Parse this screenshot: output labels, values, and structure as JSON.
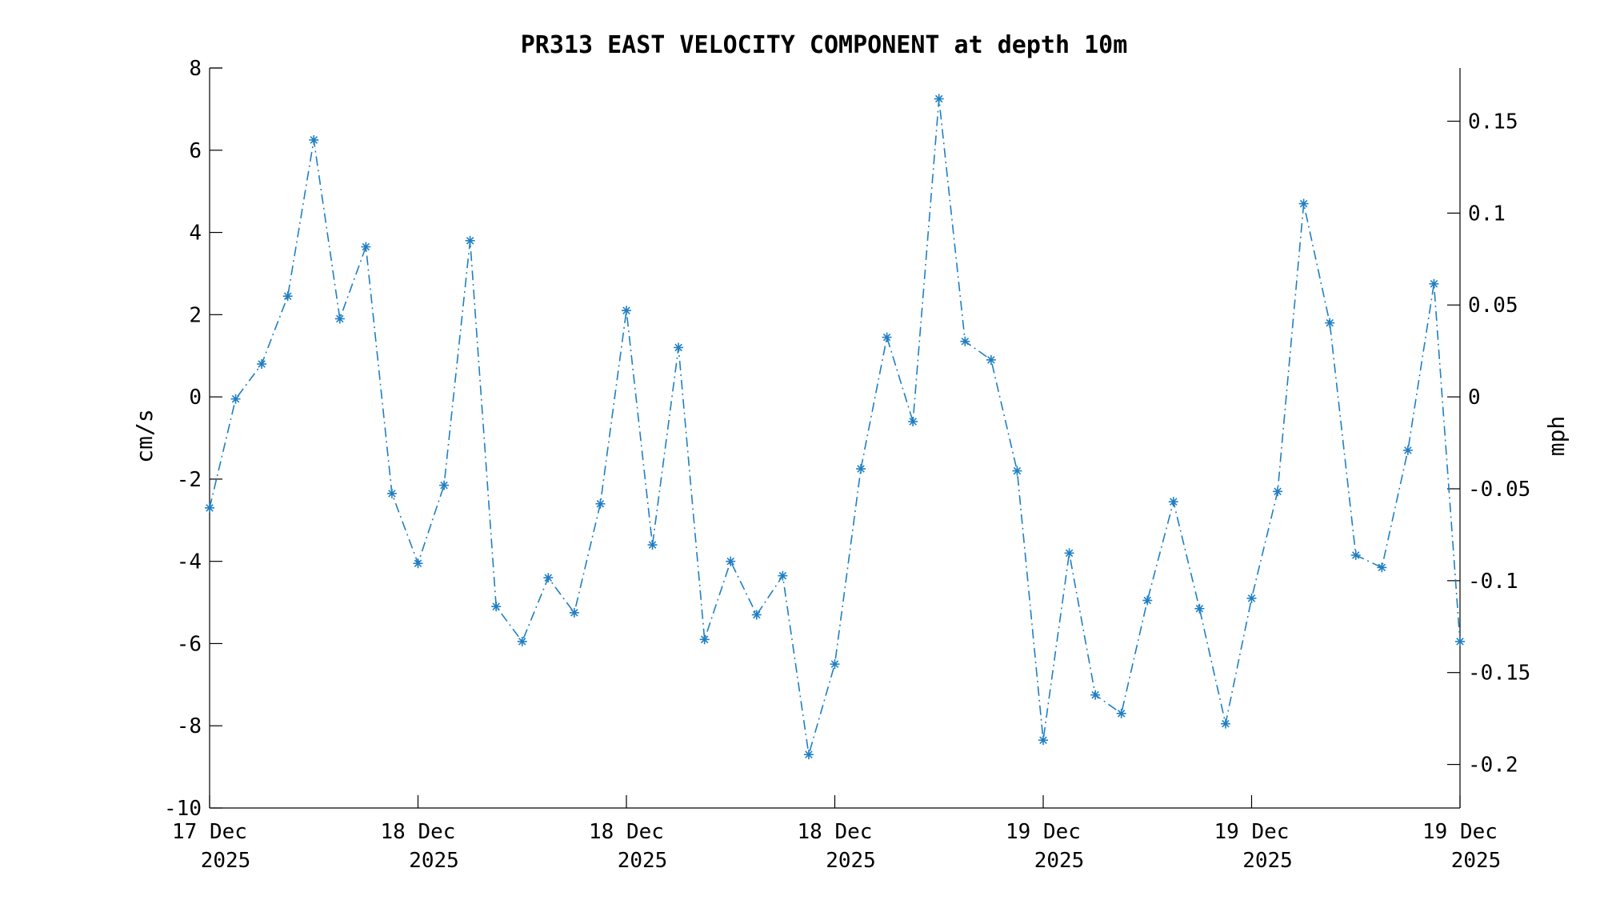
{
  "chart_data": {
    "type": "line",
    "title": "PR313 EAST VELOCITY COMPONENT at depth 10m",
    "ylabel": "cm/s",
    "y2label": "mph",
    "ylim": [
      -10,
      8
    ],
    "yticks": [
      -10,
      -8,
      -6,
      -4,
      -2,
      0,
      2,
      4,
      6,
      8
    ],
    "y2ticks": [
      "-0.2",
      "-0.15",
      "-0.1",
      "-0.05",
      "0",
      "0.05",
      "0.1",
      "0.15"
    ],
    "y2_values": [
      -0.2,
      -0.15,
      -0.1,
      -0.05,
      0,
      0.05,
      0.1,
      0.15
    ],
    "xticks": [
      {
        "line1": "17 Dec",
        "line2": "2025"
      },
      {
        "line1": "18 Dec",
        "line2": "2025"
      },
      {
        "line1": "18 Dec",
        "line2": "2025"
      },
      {
        "line1": "18 Dec",
        "line2": "2025"
      },
      {
        "line1": "19 Dec",
        "line2": "2025"
      },
      {
        "line1": "19 Dec",
        "line2": "2025"
      },
      {
        "line1": "19 Dec",
        "line2": "2025"
      }
    ],
    "grid": false,
    "marker": "asterisk",
    "line_style": "dash-dot",
    "color": "#1f7fc3",
    "series": [
      {
        "values": [
          -2.7,
          -0.05,
          0.8,
          2.45,
          6.25,
          1.9,
          3.65,
          -2.35,
          -4.05,
          -2.15,
          3.8,
          -5.1,
          -5.95,
          -4.4,
          -5.25,
          -2.6,
          2.1,
          -3.6,
          1.2,
          -5.9,
          -4.0,
          -5.3,
          -4.35,
          -8.7,
          -6.5,
          -1.75,
          1.45,
          -0.6,
          7.25,
          1.35,
          0.9,
          -1.8,
          -8.35,
          -3.8,
          -7.25,
          -7.7,
          -4.95,
          -2.55,
          -5.15,
          -7.95,
          -4.9,
          -2.3,
          4.7,
          1.8,
          -3.85,
          -4.15,
          -1.3,
          2.75,
          -5.95
        ]
      }
    ]
  }
}
